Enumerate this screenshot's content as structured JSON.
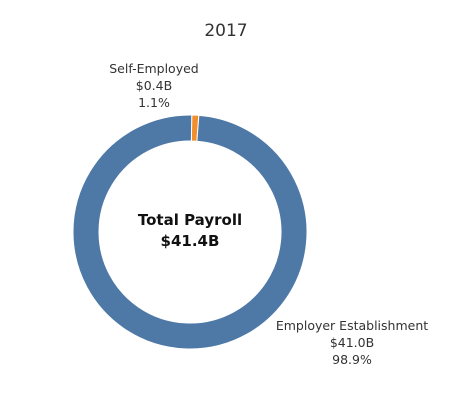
{
  "chart_data": {
    "type": "pie",
    "title": "2017",
    "center_label": {
      "line1": "Total Payroll",
      "line2": "$41.4B"
    },
    "slices": [
      {
        "name": "Employer Establishment",
        "amount_label": "$41.0B",
        "percent_label": "98.9%",
        "value": 41.0,
        "percent": 98.9,
        "color": "#4E79A7"
      },
      {
        "name": "Self-Employed",
        "amount_label": "$0.4B",
        "percent_label": "1.1%",
        "value": 0.4,
        "percent": 1.1,
        "color": "#F28E2B"
      }
    ]
  }
}
